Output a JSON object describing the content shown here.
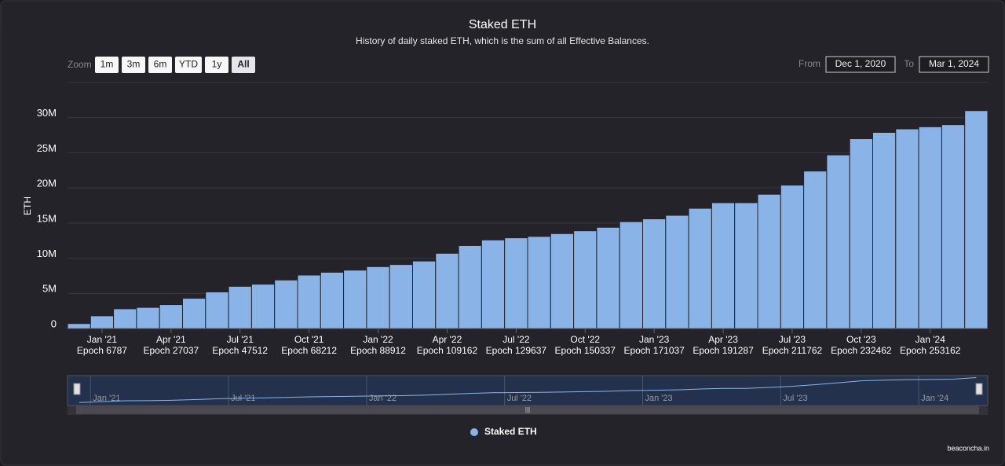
{
  "chart_data": {
    "type": "bar",
    "title": "Staked ETH",
    "subtitle": "History of daily staked ETH, which is the sum of all Effective Balances.",
    "y_axis_label": "ETH",
    "zoom_label": "Zoom",
    "zoom_buttons": [
      "1m",
      "3m",
      "6m",
      "YTD",
      "1y",
      "All"
    ],
    "range": {
      "from_label": "From",
      "from": "Dec 1, 2020",
      "to_label": "To",
      "to": "Mar 1, 2024"
    },
    "x": [
      "2020-12",
      "2021-01",
      "2021-02",
      "2021-03",
      "2021-04",
      "2021-05",
      "2021-06",
      "2021-07",
      "2021-08",
      "2021-09",
      "2021-10",
      "2021-11",
      "2021-12",
      "2022-01",
      "2022-02",
      "2022-03",
      "2022-04",
      "2022-05",
      "2022-06",
      "2022-07",
      "2022-08",
      "2022-09",
      "2022-10",
      "2022-11",
      "2022-12",
      "2023-01",
      "2023-02",
      "2023-03",
      "2023-04",
      "2023-05",
      "2023-06",
      "2023-07",
      "2023-08",
      "2023-09",
      "2023-10",
      "2023-11",
      "2023-12",
      "2024-01",
      "2024-02",
      "2024-03"
    ],
    "series": [
      {
        "name": "Staked ETH",
        "color": "#8ab4e8",
        "values": [
          700000,
          1800000,
          2800000,
          3000000,
          3400000,
          4300000,
          5200000,
          6000000,
          6300000,
          6900000,
          7600000,
          8000000,
          8300000,
          8800000,
          9100000,
          9600000,
          10700000,
          11800000,
          12600000,
          12900000,
          13100000,
          13500000,
          13900000,
          14400000,
          15200000,
          15600000,
          16100000,
          17100000,
          17900000,
          17900000,
          19100000,
          20400000,
          22400000,
          24700000,
          27000000,
          27900000,
          28400000,
          28700000,
          29000000,
          31000000
        ]
      }
    ],
    "ylim": [
      0,
      35000000
    ],
    "yticks": [
      0,
      {
        "value": 5000000,
        "label": "5M"
      },
      {
        "value": 10000000,
        "label": "10M"
      },
      {
        "value": 15000000,
        "label": "15M"
      },
      {
        "value": 20000000,
        "label": "20M"
      },
      {
        "value": 25000000,
        "label": "25M"
      },
      {
        "value": 30000000,
        "label": "30M"
      }
    ],
    "xticks": [
      {
        "value": "2021-01",
        "label": "Jan '21",
        "sublabel": "Epoch 6787"
      },
      {
        "value": "2021-04",
        "label": "Apr '21",
        "sublabel": "Epoch 27037"
      },
      {
        "value": "2021-07",
        "label": "Jul '21",
        "sublabel": "Epoch 47512"
      },
      {
        "value": "2021-10",
        "label": "Oct '21",
        "sublabel": "Epoch 68212"
      },
      {
        "value": "2022-01",
        "label": "Jan '22",
        "sublabel": "Epoch 88912"
      },
      {
        "value": "2022-04",
        "label": "Apr '22",
        "sublabel": "Epoch 109162"
      },
      {
        "value": "2022-07",
        "label": "Jul '22",
        "sublabel": "Epoch 129637"
      },
      {
        "value": "2022-10",
        "label": "Oct '22",
        "sublabel": "Epoch 150337"
      },
      {
        "value": "2023-01",
        "label": "Jan '23",
        "sublabel": "Epoch 171037"
      },
      {
        "value": "2023-04",
        "label": "Apr '23",
        "sublabel": "Epoch 191287"
      },
      {
        "value": "2023-07",
        "label": "Jul '23",
        "sublabel": "Epoch 211762"
      },
      {
        "value": "2023-10",
        "label": "Oct '23",
        "sublabel": "Epoch 232462"
      },
      {
        "value": "2024-01",
        "label": "Jan '24",
        "sublabel": "Epoch 253162"
      }
    ],
    "navigator_ticks": [
      {
        "value": "2021-01",
        "label": "Jan '21"
      },
      {
        "value": "2021-07",
        "label": "Jul '21"
      },
      {
        "value": "2022-01",
        "label": "Jan '22"
      },
      {
        "value": "2022-07",
        "label": "Jul '22"
      },
      {
        "value": "2023-01",
        "label": "Jan '23"
      },
      {
        "value": "2023-07",
        "label": "Jul '23"
      },
      {
        "value": "2024-01",
        "label": "Jan '24"
      }
    ],
    "grid": true,
    "credit": "beaconcha.in"
  }
}
